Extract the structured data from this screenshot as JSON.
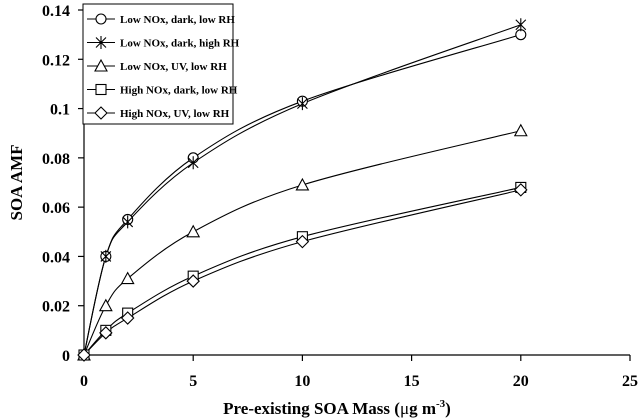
{
  "chart_data": {
    "type": "line",
    "title": "",
    "xlabel_main": "Pre-existing SOA Mass (",
    "xlabel_mu": "μ",
    "xlabel_unit": "g m",
    "xlabel_sup": "-3",
    "xlabel_close": ")",
    "ylabel": "SOA AMF",
    "xlim": [
      0,
      25
    ],
    "ylim": [
      0,
      0.14
    ],
    "xticks": [
      0,
      5,
      10,
      15,
      20,
      25
    ],
    "yticks": [
      0,
      0.02,
      0.04,
      0.06,
      0.08,
      0.1,
      0.12,
      0.14
    ],
    "xtick_labels": [
      "0",
      "5",
      "10",
      "15",
      "20",
      "25"
    ],
    "ytick_labels": [
      "0",
      "0.02",
      "0.04",
      "0.06",
      "0.08",
      "0.1",
      "0.12",
      "0.14"
    ],
    "grid": false,
    "legend_position": "top-left",
    "series": [
      {
        "name": "Low NOx, dark, low RH",
        "marker": "circle",
        "x": [
          0,
          1,
          2,
          5,
          10,
          20
        ],
        "y": [
          0,
          0.04,
          0.055,
          0.08,
          0.103,
          0.13
        ]
      },
      {
        "name": "Low NOx, dark, high RH",
        "marker": "star",
        "x": [
          0,
          1,
          2,
          5,
          10,
          20
        ],
        "y": [
          0,
          0.04,
          0.054,
          0.078,
          0.102,
          0.134
        ]
      },
      {
        "name": "Low NOx, UV, low RH",
        "marker": "triangle",
        "x": [
          0,
          1,
          2,
          5,
          10,
          20
        ],
        "y": [
          0,
          0.02,
          0.031,
          0.05,
          0.069,
          0.091
        ]
      },
      {
        "name": "High NOx, dark, low RH",
        "marker": "square",
        "x": [
          0,
          1,
          2,
          5,
          10,
          20
        ],
        "y": [
          0,
          0.01,
          0.017,
          0.032,
          0.048,
          0.068
        ]
      },
      {
        "name": "High NOx, UV, low RH",
        "marker": "diamond",
        "x": [
          0,
          1,
          2,
          5,
          10,
          20
        ],
        "y": [
          0,
          0.009,
          0.015,
          0.03,
          0.046,
          0.067
        ]
      }
    ],
    "colors": {
      "line": "#000000",
      "marker_fill": "#ffffff",
      "background": "#ffffff"
    }
  }
}
